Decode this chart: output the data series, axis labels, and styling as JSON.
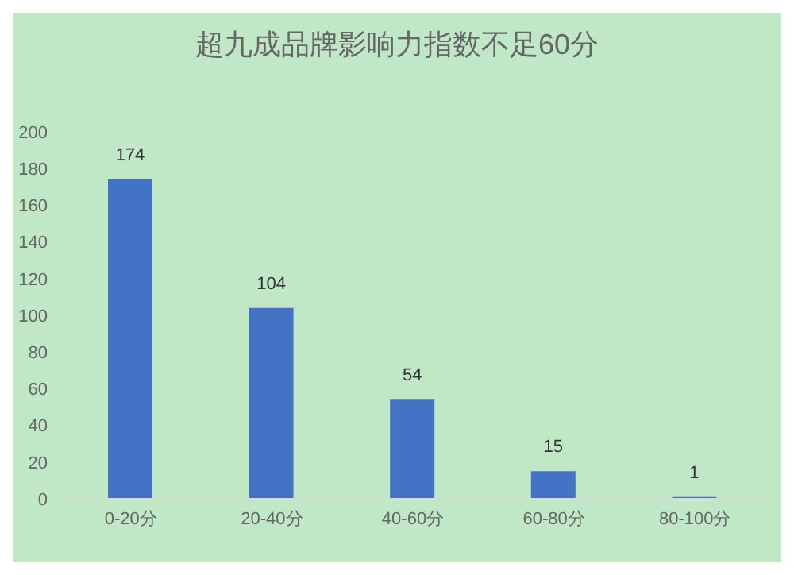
{
  "chart_data": {
    "type": "bar",
    "title": "超九成品牌影响力指数不足60分",
    "categories": [
      "0-20分",
      "20-40分",
      "40-60分",
      "60-80分",
      "80-100分"
    ],
    "values": [
      174,
      104,
      54,
      15,
      1
    ],
    "color": "#4472c4",
    "ylim": [
      0,
      200
    ],
    "yticks": [
      0,
      20,
      40,
      60,
      80,
      100,
      120,
      140,
      160,
      180,
      200
    ],
    "grid": false,
    "data_labels": true
  }
}
